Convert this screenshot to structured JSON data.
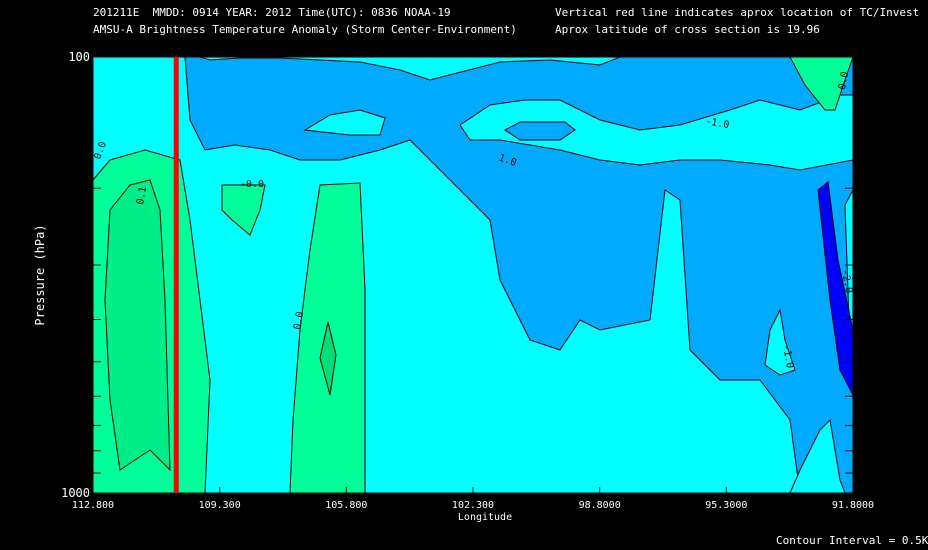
{
  "header": {
    "line1_left": "201211E  MMDD: 0914 YEAR: 2012 Time(UTC): 0836 NOAA-19",
    "line2_left": "AMSU-A Brightness Temperature Anomaly (Storm Center-Environment)",
    "line1_right": "Vertical red line indicates aprox location of TC/Invest",
    "line2_right": "Aprox latitude of cross section is 19.96"
  },
  "footer": {
    "contour_interval": "Contour Interval = 0.5K"
  },
  "colors": {
    "background": "#000000",
    "anom_pos05": "#00ff99",
    "anom_0": "#00ffff",
    "anom_neg1": "#00aaff",
    "anom_neg2": "#0000ff",
    "storm_line": "#ff0000"
  },
  "chart_data": {
    "type": "contour",
    "title": "AMSU-A Brightness Temperature Anomaly (Storm Center-Environment)",
    "xlabel": "Longitude",
    "ylabel": "Pressure (hPa)",
    "x_tick_labels": [
      "112.800",
      "109.300",
      "105.800",
      "102.300",
      "98.8000",
      "95.3000",
      "91.8000"
    ],
    "x_ticks": [
      112.8,
      109.3,
      105.8,
      102.3,
      98.8,
      95.3,
      91.8
    ],
    "y_tick_labels": [
      "100",
      "1000"
    ],
    "y_ticks": [
      100,
      1000
    ],
    "xlim": [
      112.8,
      91.8
    ],
    "ylim": [
      1000,
      100
    ],
    "y_scale": "log",
    "storm_center_longitude": 110.5,
    "contour_labels": [
      "0.0",
      "0.1",
      "-0.0",
      "0.0",
      "-1.0",
      "1.0",
      "-1.0",
      "0.0",
      "-2.0"
    ],
    "contour_interval_K": 0.5
  }
}
